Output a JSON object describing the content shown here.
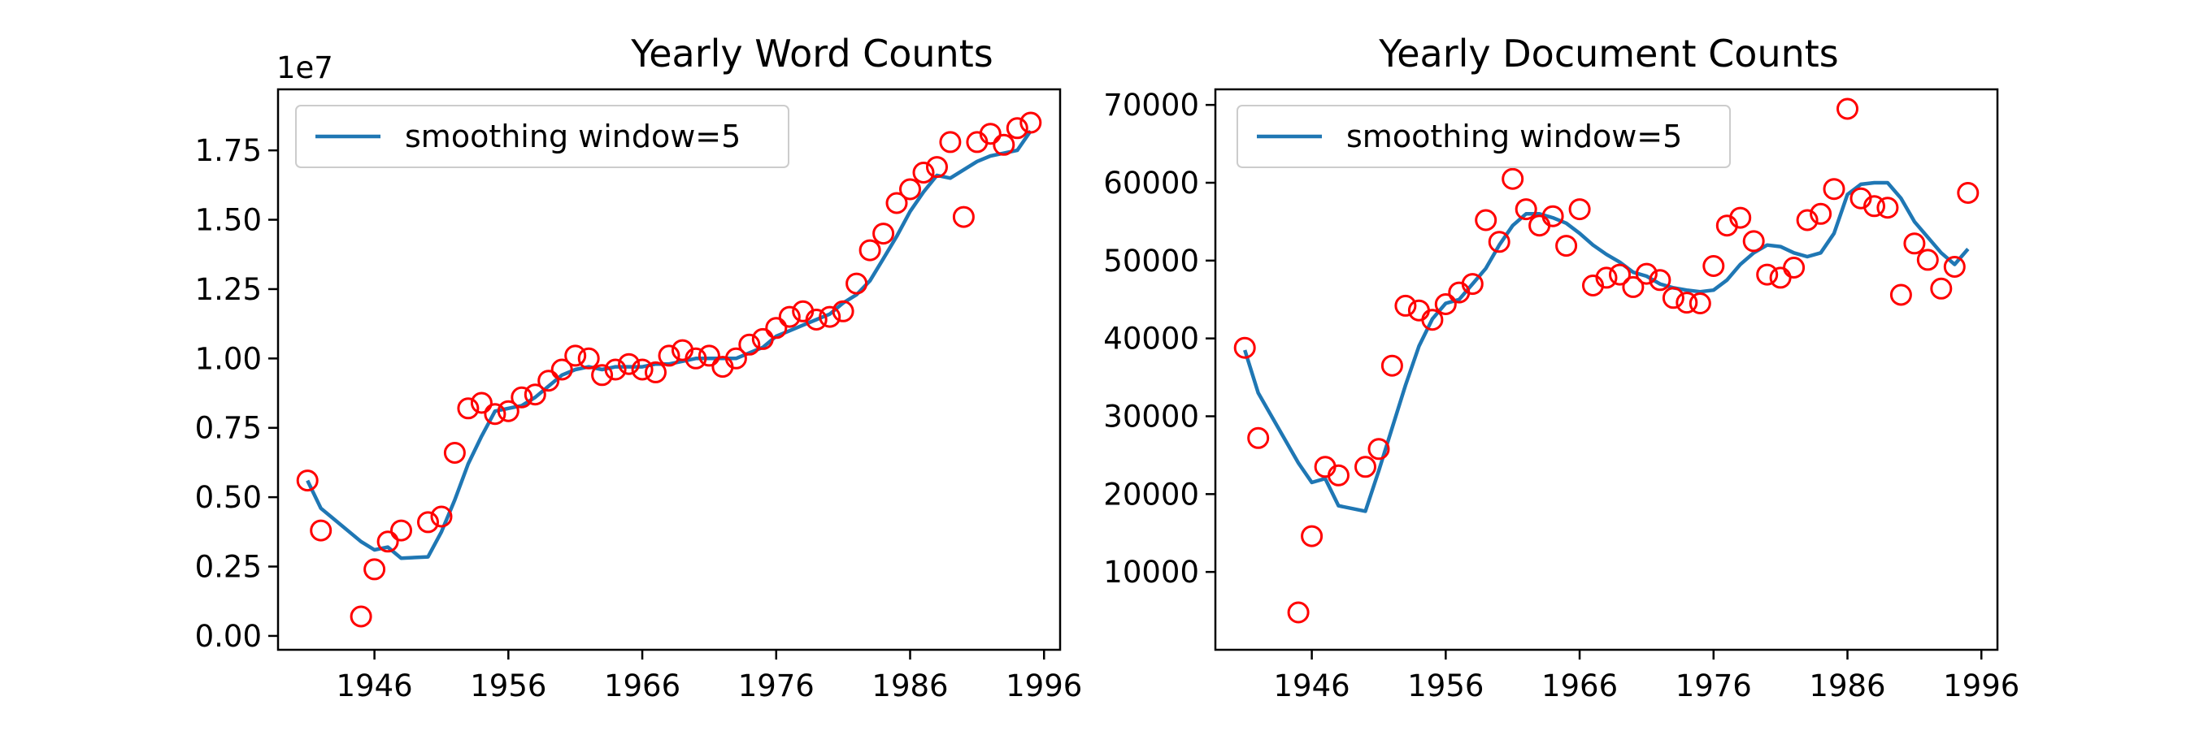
{
  "colors": {
    "line": "#1f77b4",
    "marker": "#ff0000",
    "axes": "#000000",
    "background": "#ffffff"
  },
  "chart_data": [
    {
      "type": "line",
      "title": "Yearly Word Counts",
      "xlabel": "",
      "ylabel": "",
      "xlim": [
        1938.8,
        1997.2
      ],
      "ylim": [
        -0.05,
        1.97
      ],
      "x_ticks": [
        1946,
        1956,
        1966,
        1976,
        1986,
        1996
      ],
      "y_ticks": [
        0.0,
        0.25,
        0.5,
        0.75,
        1.0,
        1.25,
        1.5,
        1.75
      ],
      "y_tick_labels": [
        "0.00",
        "0.25",
        "0.50",
        "0.75",
        "1.00",
        "1.25",
        "1.50",
        "1.75"
      ],
      "y_offset_label": "1e7",
      "grid": false,
      "legend": {
        "position": "upper-left",
        "entries": [
          "smoothing window=5"
        ]
      },
      "series": [
        {
          "name": "smoothing window=5",
          "style": "line",
          "x": [
            1941,
            1942,
            1945,
            1946,
            1947,
            1948,
            1950,
            1951,
            1952,
            1953,
            1954,
            1955,
            1956,
            1957,
            1958,
            1959,
            1960,
            1961,
            1962,
            1963,
            1964,
            1965,
            1966,
            1967,
            1968,
            1969,
            1970,
            1971,
            1972,
            1973,
            1974,
            1975,
            1976,
            1977,
            1978,
            1979,
            1980,
            1981,
            1982,
            1983,
            1984,
            1985,
            1986,
            1987,
            1988,
            1989,
            1990,
            1991,
            1992,
            1993,
            1994,
            1995
          ],
          "values": [
            0.56,
            0.46,
            0.34,
            0.31,
            0.32,
            0.28,
            0.285,
            0.375,
            0.49,
            0.62,
            0.72,
            0.81,
            0.82,
            0.83,
            0.86,
            0.9,
            0.94,
            0.96,
            0.97,
            0.96,
            0.97,
            0.97,
            0.97,
            0.98,
            0.98,
            0.99,
            1.0,
            1.0,
            1.0,
            1.0,
            1.02,
            1.04,
            1.08,
            1.1,
            1.12,
            1.14,
            1.16,
            1.2,
            1.23,
            1.28,
            1.36,
            1.44,
            1.53,
            1.6,
            1.66,
            1.65,
            1.68,
            1.71,
            1.73,
            1.74,
            1.75,
            1.82
          ]
        },
        {
          "name": "",
          "style": "marker",
          "x": [
            1941,
            1942,
            1945,
            1946,
            1947,
            1948,
            1950,
            1951,
            1952,
            1953,
            1954,
            1955,
            1956,
            1957,
            1958,
            1959,
            1960,
            1961,
            1962,
            1963,
            1964,
            1965,
            1966,
            1967,
            1968,
            1969,
            1970,
            1971,
            1972,
            1973,
            1974,
            1975,
            1976,
            1977,
            1978,
            1979,
            1980,
            1981,
            1982,
            1983,
            1984,
            1985,
            1986,
            1987,
            1988,
            1989,
            1990,
            1991,
            1992,
            1993,
            1994,
            1995
          ],
          "values": [
            0.56,
            0.38,
            0.07,
            0.24,
            0.34,
            0.38,
            0.41,
            0.43,
            0.66,
            0.82,
            0.84,
            0.8,
            0.81,
            0.86,
            0.87,
            0.92,
            0.96,
            1.01,
            1.0,
            0.94,
            0.96,
            0.98,
            0.96,
            0.95,
            1.01,
            1.03,
            1.0,
            1.01,
            0.97,
            1.0,
            1.05,
            1.07,
            1.11,
            1.15,
            1.17,
            1.14,
            1.15,
            1.17,
            1.27,
            1.39,
            1.45,
            1.56,
            1.61,
            1.67,
            1.69,
            1.78,
            1.51,
            1.78,
            1.81,
            1.77,
            1.83,
            1.85
          ]
        }
      ]
    },
    {
      "type": "line",
      "title": "Yearly Document Counts",
      "xlabel": "",
      "ylabel": "",
      "xlim": [
        1938.8,
        1997.2
      ],
      "ylim": [
        0,
        72000
      ],
      "x_ticks": [
        1946,
        1956,
        1966,
        1976,
        1986,
        1996
      ],
      "y_ticks": [
        10000,
        20000,
        30000,
        40000,
        50000,
        60000,
        70000
      ],
      "y_tick_labels": [
        "10000",
        "20000",
        "30000",
        "40000",
        "50000",
        "60000",
        "70000"
      ],
      "y_offset_label": "",
      "grid": false,
      "legend": {
        "position": "upper-left",
        "entries": [
          "smoothing window=5"
        ]
      },
      "series": [
        {
          "name": "smoothing window=5",
          "style": "line",
          "x": [
            1941,
            1942,
            1945,
            1946,
            1947,
            1948,
            1950,
            1951,
            1952,
            1953,
            1954,
            1955,
            1956,
            1957,
            1958,
            1959,
            1960,
            1961,
            1962,
            1963,
            1964,
            1965,
            1966,
            1967,
            1968,
            1969,
            1970,
            1971,
            1972,
            1973,
            1974,
            1975,
            1976,
            1977,
            1978,
            1979,
            1980,
            1981,
            1982,
            1983,
            1984,
            1985,
            1986,
            1987,
            1988,
            1989,
            1990,
            1991,
            1992,
            1993,
            1994,
            1995
          ],
          "values": [
            38500,
            33000,
            24000,
            21500,
            22000,
            18500,
            17800,
            23000,
            28500,
            34000,
            39000,
            42500,
            44500,
            45000,
            47000,
            49000,
            52000,
            54500,
            56000,
            56000,
            55500,
            54800,
            53500,
            52000,
            50800,
            49800,
            48500,
            48000,
            47000,
            46500,
            46200,
            46000,
            46200,
            47500,
            49500,
            51000,
            52000,
            51800,
            51000,
            50500,
            51000,
            53500,
            58500,
            59800,
            60000,
            60000,
            58000,
            55000,
            53000,
            51000,
            49500,
            51500
          ]
        },
        {
          "name": "",
          "style": "marker",
          "x": [
            1941,
            1942,
            1945,
            1946,
            1947,
            1948,
            1950,
            1951,
            1952,
            1953,
            1954,
            1955,
            1956,
            1957,
            1958,
            1959,
            1960,
            1961,
            1962,
            1963,
            1964,
            1965,
            1966,
            1967,
            1968,
            1969,
            1970,
            1971,
            1972,
            1973,
            1974,
            1975,
            1976,
            1977,
            1978,
            1979,
            1980,
            1981,
            1982,
            1983,
            1984,
            1985,
            1986,
            1987,
            1988,
            1989,
            1990,
            1991,
            1992,
            1993,
            1994,
            1995
          ],
          "values": [
            38800,
            27200,
            4800,
            14600,
            23500,
            22400,
            23500,
            25800,
            36500,
            44200,
            43600,
            42400,
            44400,
            45900,
            47000,
            55200,
            52400,
            60500,
            56600,
            54500,
            55700,
            51900,
            56600,
            46800,
            47800,
            48200,
            46600,
            48300,
            47500,
            45200,
            44600,
            44500,
            49300,
            54500,
            55500,
            52500,
            48200,
            47800,
            49100,
            55200,
            56000,
            59200,
            69500,
            58000,
            57000,
            56800,
            45600,
            52200,
            50100,
            46400,
            49200,
            58700
          ]
        }
      ]
    }
  ]
}
